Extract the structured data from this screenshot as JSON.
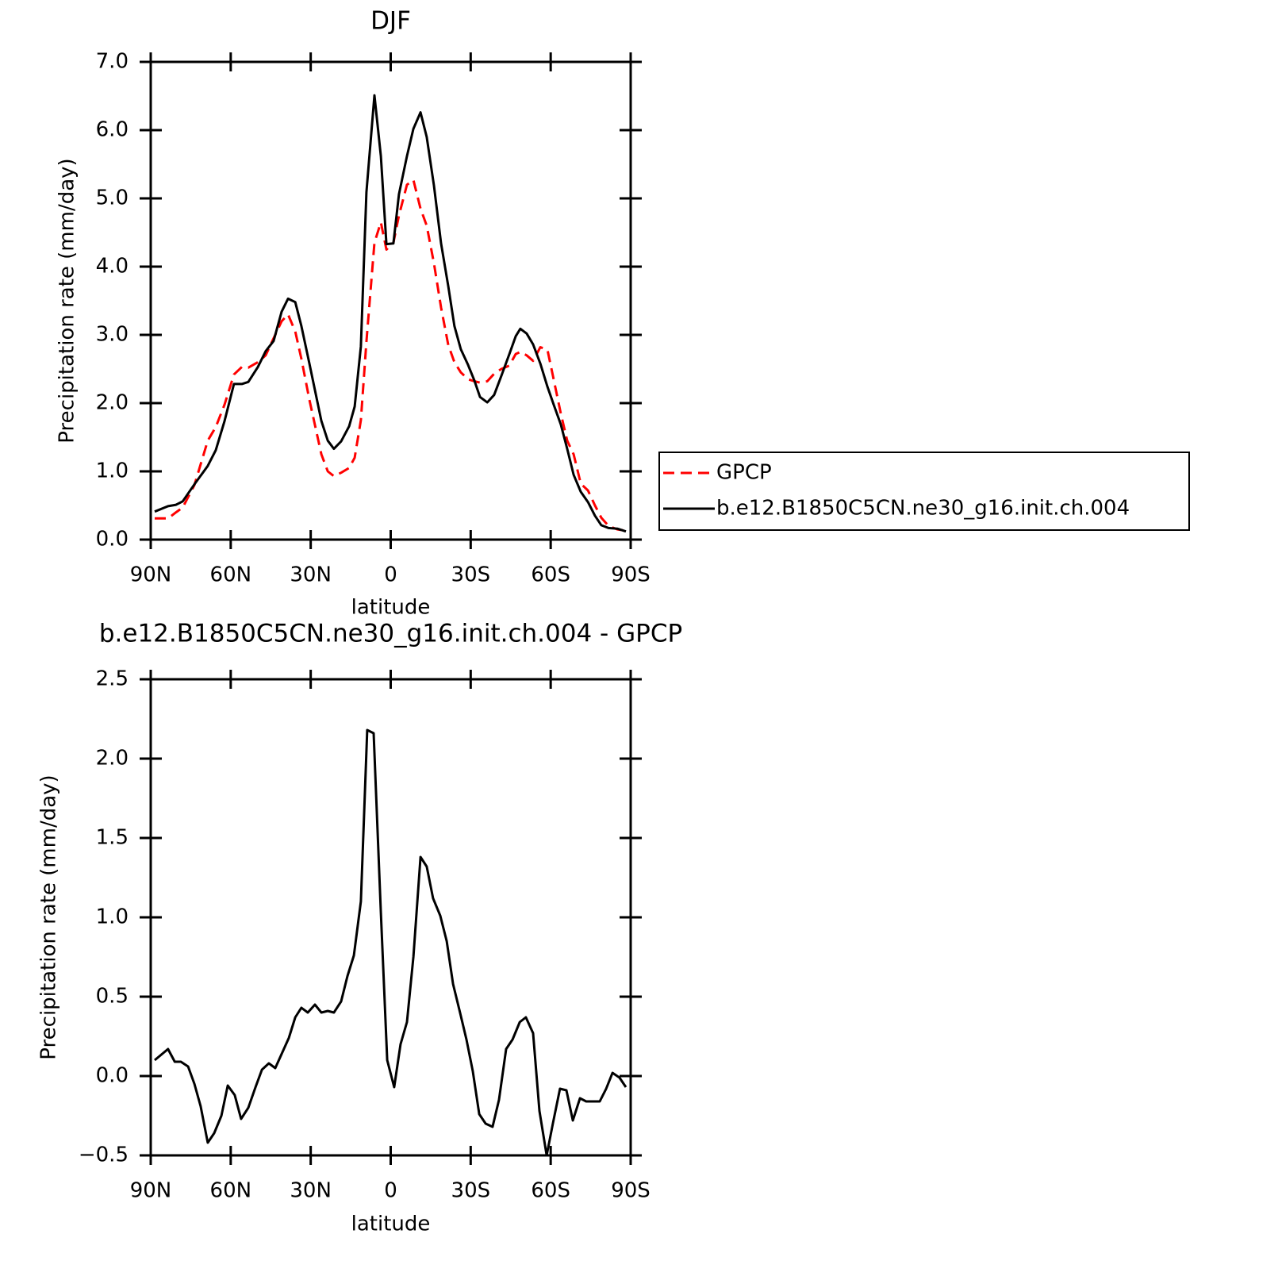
{
  "chart_data": [
    {
      "type": "line",
      "title": "DJF",
      "xlabel": "latitude",
      "ylabel": "Precipitation rate (mm/day)",
      "legend": "right",
      "x": [
        88.5,
        83.5,
        80.5,
        78,
        73.6,
        68.6,
        65.6,
        62.3,
        58.8,
        55.8,
        53.4,
        49.8,
        46.9,
        43.9,
        40.9,
        38.5,
        35.8,
        33.5,
        30.5,
        26,
        23.6,
        21.3,
        18.6,
        15.6,
        13.5,
        11.2,
        9.1,
        6.1,
        3.7,
        1.6,
        -1.0,
        -3.1,
        -6.1,
        -8.5,
        -11.2,
        -13.5,
        -16.2,
        -18.9,
        -21.6,
        -23.9,
        -26.3,
        -29,
        -31.4,
        -33.5,
        -36.2,
        -38.8,
        -41.5,
        -44.5,
        -46.9,
        -48.6,
        -51,
        -53.4,
        -56.1,
        -58.8,
        -61.1,
        -63.8,
        -66.2,
        -68.6,
        -71.3,
        -74,
        -76.6,
        -79,
        -81.7,
        -85,
        -88.2
      ],
      "series": [
        {
          "name": "GPCP",
          "color": "#ff0000",
          "dash": true,
          "values": [
            0.31,
            0.31,
            0.4,
            0.47,
            0.8,
            1.45,
            1.65,
            1.98,
            2.42,
            2.53,
            2.52,
            2.6,
            2.7,
            2.95,
            3.2,
            3.3,
            3.05,
            2.65,
            2.05,
            1.25,
            1.0,
            0.93,
            0.98,
            1.05,
            1.2,
            1.75,
            2.9,
            4.35,
            4.65,
            4.25,
            4.35,
            4.75,
            5.2,
            5.27,
            4.85,
            4.6,
            4.05,
            3.4,
            2.85,
            2.6,
            2.45,
            2.35,
            2.32,
            2.3,
            2.32,
            2.43,
            2.5,
            2.55,
            2.72,
            2.75,
            2.7,
            2.62,
            2.82,
            2.78,
            2.35,
            1.85,
            1.45,
            1.25,
            0.82,
            0.72,
            0.5,
            0.32,
            0.2,
            0.15,
            0.13
          ]
        },
        {
          "name": "b.e12.B1850C5CN.ne30_g16.init.ch.004",
          "color": "#000000",
          "dash": false,
          "values": [
            0.41,
            0.49,
            0.51,
            0.56,
            0.81,
            1.08,
            1.31,
            1.74,
            2.28,
            2.28,
            2.31,
            2.53,
            2.76,
            2.91,
            3.34,
            3.53,
            3.48,
            3.13,
            2.58,
            1.74,
            1.45,
            1.33,
            1.44,
            1.66,
            1.95,
            2.83,
            5.09,
            6.51,
            5.62,
            4.33,
            4.34,
            5.06,
            5.62,
            6.02,
            6.26,
            5.9,
            5.19,
            4.34,
            3.71,
            3.13,
            2.79,
            2.56,
            2.33,
            2.09,
            2.01,
            2.12,
            2.4,
            2.72,
            2.98,
            3.09,
            3.02,
            2.86,
            2.58,
            2.24,
            1.98,
            1.69,
            1.33,
            0.95,
            0.7,
            0.55,
            0.35,
            0.21,
            0.17,
            0.16,
            0.12
          ]
        }
      ],
      "xlim": [
        90,
        -90
      ],
      "xticks": [
        {
          "value": 90,
          "label": "90N"
        },
        {
          "value": 60,
          "label": "60N"
        },
        {
          "value": 30,
          "label": "30N"
        },
        0,
        {
          "value": -30,
          "label": "30S"
        },
        {
          "value": -60,
          "label": "60S"
        },
        {
          "value": -90,
          "label": "90S"
        }
      ],
      "ylim": [
        0,
        7
      ],
      "yticks": [
        {
          "value": 0,
          "label": "0.0"
        },
        {
          "value": 1,
          "label": "1.0"
        },
        {
          "value": 2,
          "label": "2.0"
        },
        {
          "value": 3,
          "label": "3.0"
        },
        {
          "value": 4,
          "label": "4.0"
        },
        {
          "value": 5,
          "label": "5.0"
        },
        {
          "value": 6,
          "label": "6.0"
        },
        {
          "value": 7,
          "label": "7.0"
        }
      ]
    },
    {
      "type": "line",
      "title": "b.e12.B1850C5CN.ne30_g16.init.ch.004 - GPCP",
      "xlabel": "latitude",
      "ylabel": "Precipitation rate (mm/day)",
      "x": [
        88.5,
        83.5,
        81,
        78.7,
        76,
        73.6,
        71.3,
        68.6,
        66.2,
        63.5,
        61.1,
        58.5,
        56.1,
        53.4,
        50.7,
        48.3,
        45.7,
        43.3,
        40.6,
        38.2,
        35.8,
        33.5,
        31.1,
        28.4,
        26,
        23.6,
        21.3,
        18.6,
        16.2,
        13.8,
        11.2,
        8.8,
        6.4,
        3.7,
        1.3,
        -1.3,
        -3.7,
        -6.1,
        -8.5,
        -11.2,
        -13.5,
        -15.9,
        -18.6,
        -21,
        -23.4,
        -26,
        -28.4,
        -30.8,
        -33.2,
        -35.6,
        -38.2,
        -40.6,
        -43.3,
        -45.7,
        -48.4,
        -50.7,
        -53.4,
        -55.8,
        -58.5,
        -60.8,
        -63.5,
        -65.9,
        -68.3,
        -71,
        -73.3,
        -75.7,
        -78.4,
        -80.8,
        -83.2,
        -85.8,
        -88.2
      ],
      "color": "#000000",
      "values": [
        0.1,
        0.17,
        0.09,
        0.09,
        0.06,
        -0.05,
        -0.19,
        -0.42,
        -0.36,
        -0.25,
        -0.06,
        -0.12,
        -0.27,
        -0.2,
        -0.07,
        0.04,
        0.08,
        0.05,
        0.15,
        0.24,
        0.37,
        0.43,
        0.4,
        0.45,
        0.4,
        0.41,
        0.4,
        0.47,
        0.63,
        0.76,
        1.1,
        2.18,
        2.16,
        1.03,
        0.1,
        -0.07,
        0.2,
        0.34,
        0.75,
        1.38,
        1.32,
        1.12,
        1.01,
        0.85,
        0.58,
        0.4,
        0.23,
        0.03,
        -0.24,
        -0.3,
        -0.32,
        -0.15,
        0.17,
        0.23,
        0.34,
        0.37,
        0.27,
        -0.22,
        -0.5,
        -0.3,
        -0.08,
        -0.09,
        -0.28,
        -0.14,
        -0.16,
        -0.16,
        -0.16,
        -0.08,
        0.02,
        -0.01,
        -0.07
      ],
      "xlim": [
        90,
        -90
      ],
      "xticks": [
        {
          "value": 90,
          "label": "90N"
        },
        {
          "value": 60,
          "label": "60N"
        },
        {
          "value": 30,
          "label": "30N"
        },
        0,
        {
          "value": -30,
          "label": "30S"
        },
        {
          "value": -60,
          "label": "60S"
        },
        {
          "value": -90,
          "label": "90S"
        }
      ],
      "ylim": [
        -0.5,
        2.5
      ],
      "yticks": [
        {
          "value": -0.5,
          "label": "−0.5"
        },
        {
          "value": 0,
          "label": "0.0"
        },
        {
          "value": 0.5,
          "label": "0.5"
        },
        {
          "value": 1,
          "label": "1.0"
        },
        {
          "value": 1.5,
          "label": "1.5"
        },
        {
          "value": 2,
          "label": "2.0"
        },
        {
          "value": 2.5,
          "label": "2.5"
        }
      ]
    }
  ]
}
